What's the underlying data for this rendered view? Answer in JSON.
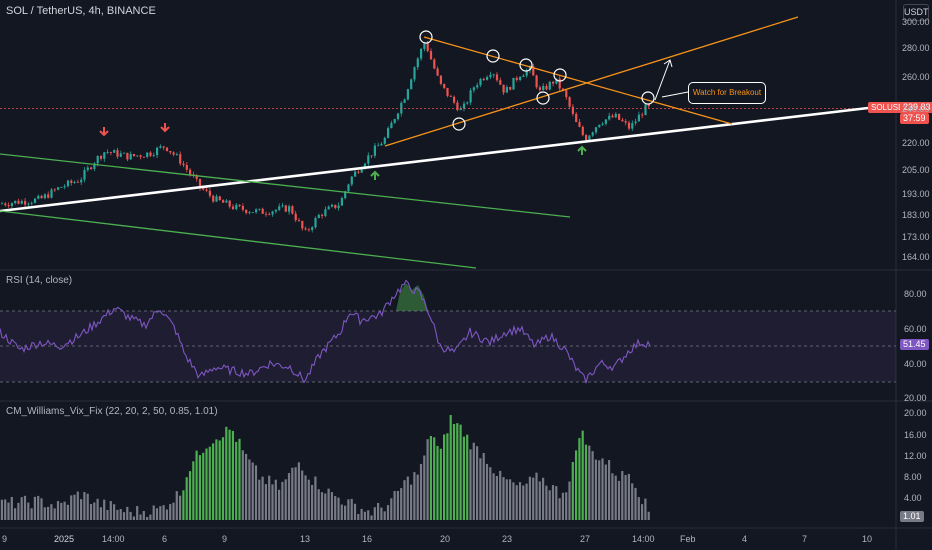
{
  "header": {
    "title": "SOL / TetherUS, 4h, BINANCE",
    "currency_button": "USDT"
  },
  "price_axis": {
    "ticks": [
      "300.00",
      "280.00",
      "260.00",
      "240.00",
      "220.00",
      "205.00",
      "193.00",
      "183.00",
      "173.00",
      "164.00"
    ],
    "symbol_tag": "SOLUSDT",
    "last_price": "239.83",
    "countdown": "37:59"
  },
  "annotation": {
    "callout": "Watch for Breakout"
  },
  "rsi": {
    "title": "RSI (14, close)",
    "ticks": [
      "80.00",
      "60.00",
      "40.00",
      "20.00"
    ],
    "value": "51.45"
  },
  "vix": {
    "title": "CM_Williams_Vix_Fix (22, 20, 2, 50, 0.85, 1.01)",
    "ticks": [
      "20.00",
      "16.00",
      "12.00",
      "8.00",
      "4.00"
    ],
    "value": "1.01"
  },
  "time_axis": {
    "labels": [
      "9",
      "2025",
      "14:00",
      "6",
      "9",
      "13",
      "16",
      "20",
      "23",
      "27",
      "14:00",
      "Feb",
      "4",
      "7",
      "10"
    ]
  },
  "colors": {
    "background": "#131722",
    "up": "#26a69a",
    "down": "#ef5350",
    "trend_white": "#ffffff",
    "wedge_orange": "#f7931a",
    "channel_green": "#4caf50",
    "rsi_line": "#7e57c2",
    "vix_green": "#4caf50",
    "vix_gray": "#787b86"
  },
  "chart_data": [
    {
      "type": "candlestick",
      "title": "SOL / TetherUS, 4h, BINANCE",
      "ylim": [
        160,
        305
      ],
      "yscale": "log",
      "x": [
        "2024-12-29",
        "2025-01-01",
        "2025-01-03",
        "2025-01-06",
        "2025-01-09",
        "2025-01-13",
        "2025-01-16",
        "2025-01-20",
        "2025-01-23",
        "2025-01-27",
        "2025-01-28"
      ],
      "close": [
        188,
        190,
        212,
        213,
        193,
        176,
        220,
        265,
        250,
        222,
        239.83
      ]
    },
    {
      "type": "line",
      "title": "RSI (14, close)",
      "ylim": [
        20,
        90
      ],
      "last": 51.45
    },
    {
      "type": "bar",
      "title": "CM_Williams_Vix_Fix (22, 20, 2, 50, 0.85, 1.01)",
      "ylim": [
        0,
        21
      ],
      "last": 1.01
    }
  ]
}
